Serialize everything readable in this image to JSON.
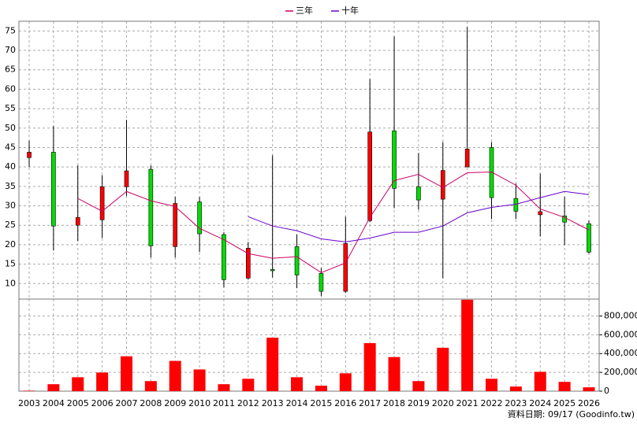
{
  "chart_data": [
    {
      "type": "candlestick",
      "legend": "top",
      "up_color": "#ff0000",
      "down_color": "#00dd00",
      "grid": true,
      "categories": [
        "2003",
        "2004",
        "2005",
        "2006",
        "2007",
        "2008",
        "2009",
        "2010",
        "2011",
        "2012",
        "2013",
        "2014",
        "2015",
        "2016",
        "2017",
        "2018",
        "2019",
        "2020",
        "2021",
        "2022",
        "2023",
        "2024",
        "2025",
        "2026"
      ],
      "open": [
        42.4,
        43.8,
        25.0,
        26.4,
        34.9,
        39.4,
        19.5,
        31.0,
        22.6,
        11.4,
        13.6,
        19.5,
        12.6,
        8.0,
        26.2,
        49.3,
        34.9,
        31.7,
        40.0,
        45.0,
        31.9,
        27.7,
        27.4,
        25.4
      ],
      "close": [
        43.8,
        24.8,
        27.0,
        34.9,
        39.0,
        19.7,
        30.6,
        22.8,
        11.0,
        19.1,
        13.3,
        12.2,
        8.0,
        20.3,
        49.0,
        34.5,
        31.5,
        39.1,
        44.6,
        32.1,
        28.6,
        28.5,
        25.8,
        18.1
      ],
      "high": [
        46.8,
        50.5,
        40.4,
        37.9,
        52.1,
        40.4,
        32.3,
        32.3,
        23.2,
        20.7,
        43.0,
        22.6,
        14.0,
        27.2,
        62.6,
        73.6,
        43.6,
        46.4,
        76.0,
        46.4,
        35.7,
        38.3,
        32.3,
        26.2
      ],
      "low": [
        40.0,
        18.5,
        20.9,
        21.7,
        32.5,
        16.7,
        16.7,
        18.1,
        9.0,
        11.0,
        11.6,
        8.8,
        6.8,
        7.6,
        25.8,
        29.4,
        29.0,
        11.4,
        40.0,
        26.6,
        26.6,
        22.1,
        19.9,
        17.7
      ],
      "series": [
        {
          "name": "三年",
          "color": "#cc0066",
          "values": [
            null,
            null,
            31.9,
            28.6,
            33.7,
            31.3,
            29.8,
            24.2,
            21.3,
            17.7,
            16.5,
            16.9,
            12.8,
            15.3,
            27.0,
            36.5,
            38.1,
            34.7,
            38.5,
            38.7,
            35.3,
            29.2,
            27.0,
            23.8
          ]
        },
        {
          "name": "十年",
          "color": "#6600cc",
          "values": [
            null,
            null,
            null,
            null,
            null,
            null,
            null,
            null,
            null,
            27.2,
            24.8,
            23.6,
            21.5,
            20.7,
            21.7,
            23.2,
            23.2,
            24.8,
            28.2,
            29.6,
            30.4,
            32.1,
            33.7,
            32.9
          ]
        }
      ],
      "ylim": [
        6,
        77.5
      ],
      "yticks": [
        10,
        15,
        20,
        25,
        30,
        35,
        40,
        45,
        50,
        55,
        60,
        65,
        70,
        75
      ]
    },
    {
      "type": "bar",
      "color": "#ff0000",
      "grid": true,
      "values": [
        5000,
        74000,
        148000,
        198000,
        371000,
        107000,
        322000,
        231000,
        74000,
        132000,
        569000,
        148000,
        58000,
        190000,
        511000,
        363000,
        107000,
        462000,
        973000,
        132000,
        49000,
        206000,
        99000,
        41000
      ],
      "ylim": [
        0,
        980000
      ],
      "yticks": [
        0,
        {
          "value": 200000,
          "label": "200,000"
        },
        {
          "value": 400000,
          "label": "400,000"
        },
        {
          "value": 600000,
          "label": "600,000"
        },
        {
          "value": 800000,
          "label": "800,000"
        }
      ],
      "note": "資料日期: 09/17  (Goodinfo.tw)"
    }
  ]
}
